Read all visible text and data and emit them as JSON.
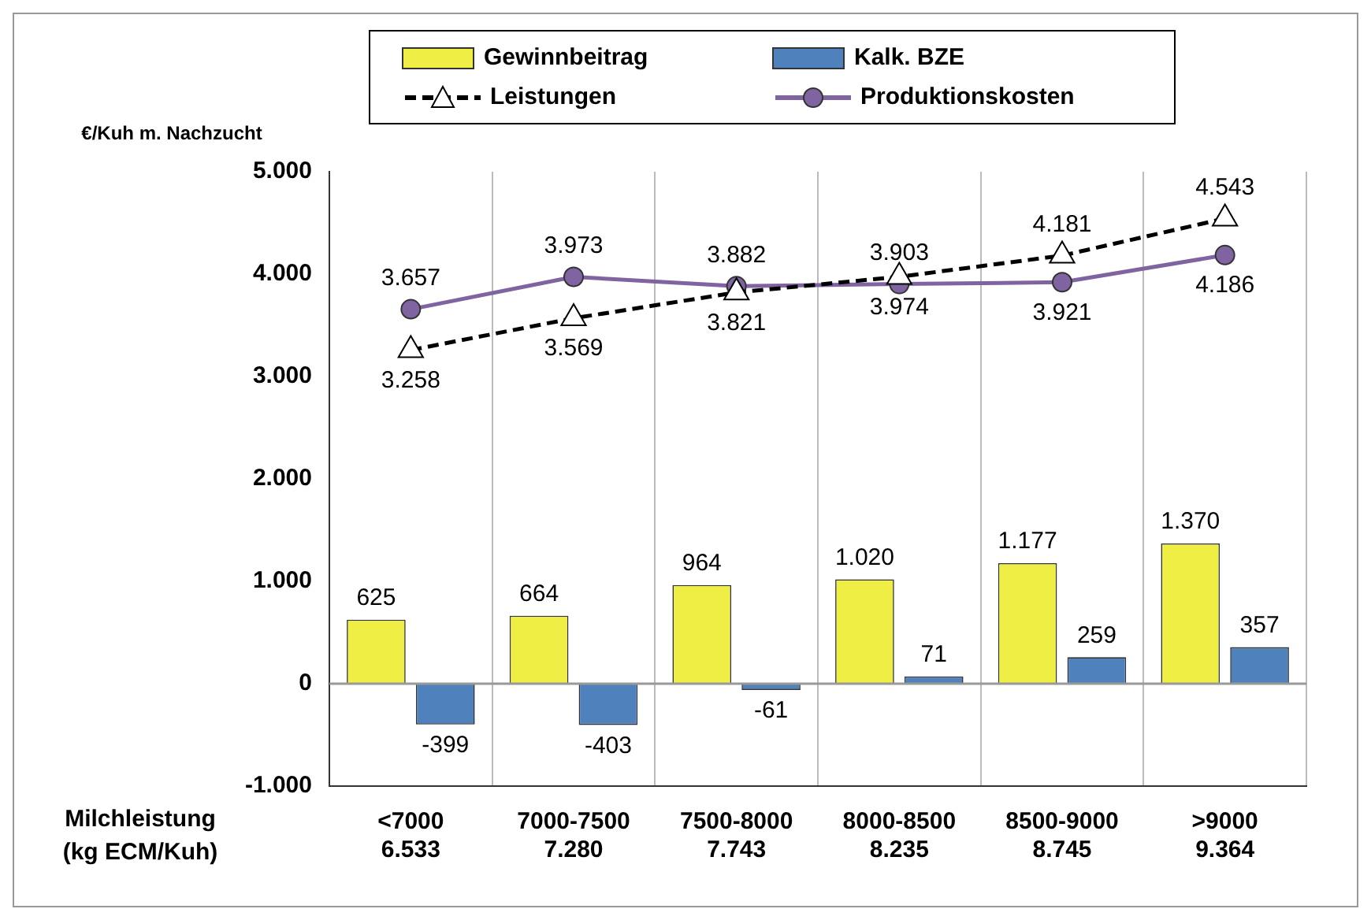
{
  "chart_data": {
    "type": "bar",
    "ylabel": "€/Kuh m. Nachzucht",
    "xlabel": "Milchleistung\n(kg ECM/Kuh)",
    "categories": [
      "<7000\n6.533",
      "7000-7500\n7.280",
      "7500-8000\n7.743",
      "8000-8500\n8.235",
      "8500-9000\n8.745",
      ">9000\n9.364"
    ],
    "series": [
      {
        "name": "Gewinnbeitrag",
        "color": "#eeee44",
        "values": [
          625,
          664,
          964,
          1020,
          1177,
          1370
        ],
        "value_labels": [
          "625",
          "664",
          "964",
          "1.020",
          "1.177",
          "1.370"
        ]
      },
      {
        "name": "Kalk. BZE",
        "color": "#4f81bd",
        "values": [
          -399,
          -403,
          -61,
          71,
          259,
          357
        ],
        "value_labels": [
          "-399",
          "-403",
          "-61",
          "71",
          "259",
          "357"
        ]
      },
      {
        "name": "Leistungen",
        "type": "line",
        "color": "#000000",
        "marker": "triangle",
        "line_style": "dashed",
        "values": [
          3258,
          3569,
          3821,
          3974,
          4181,
          4543
        ],
        "value_labels": [
          "3.258",
          "3.569",
          "3.821",
          "3.974",
          "4.181",
          "4.543"
        ]
      },
      {
        "name": "Produktionskosten",
        "type": "line",
        "color": "#8064a2",
        "marker": "circle",
        "line_style": "solid",
        "values": [
          3657,
          3973,
          3882,
          3903,
          3921,
          4186
        ],
        "value_labels": [
          "3.657",
          "3.973",
          "3.882",
          "3.903",
          "3.921",
          "4.186"
        ]
      }
    ],
    "ylim": [
      -1000,
      5000
    ],
    "yticks": [
      {
        "value": -1000,
        "label": "-1.000"
      },
      0,
      {
        "value": 1000,
        "label": "1.000"
      },
      {
        "value": 2000,
        "label": "2.000"
      },
      {
        "value": 3000,
        "label": "3.000"
      },
      {
        "value": 4000,
        "label": "4.000"
      },
      {
        "value": 5000,
        "label": "5.000"
      }
    ],
    "grid": "x",
    "legend": "top"
  }
}
